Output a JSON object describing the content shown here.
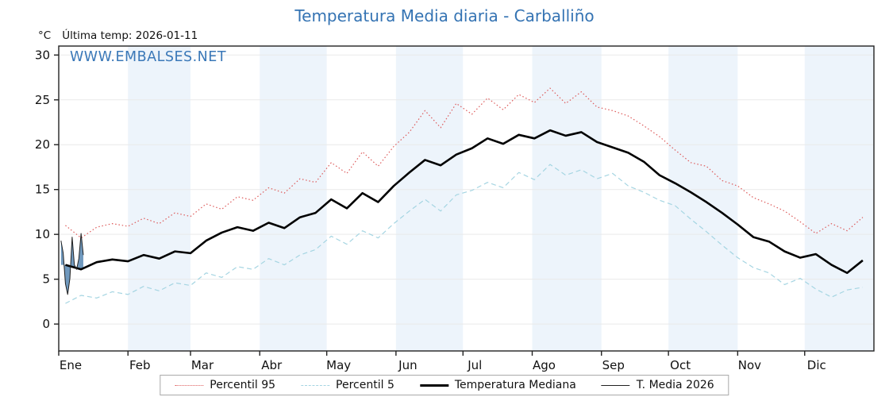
{
  "header": {
    "title": "Temperatura Media diaria - Carballiño",
    "unit_label": "°C",
    "last_temp_label": "Última temp: 2026-01-11",
    "watermark": "WWW.EMBALSES.NET"
  },
  "colors": {
    "title_blue": "#3473b3",
    "watermark_blue": "#3a78b8",
    "percentile95_red": "#dd5a5a",
    "percentile5_cyan": "#a5d5e2",
    "median_black": "#000000",
    "current_year_black": "#222222",
    "fill_blue": "#4c7fae",
    "band_blue": "#edf4fb"
  },
  "legend": {
    "items": [
      {
        "label": "Percentil 95",
        "style": "dotted",
        "color": "#dd5a5a",
        "thickness": 1
      },
      {
        "label": "Percentil 5",
        "style": "dashed",
        "color": "#a5d5e2",
        "thickness": 1
      },
      {
        "label": "Temperatura Mediana",
        "style": "solid",
        "color": "#000000",
        "thickness": 3
      },
      {
        "label": "T. Media 2026",
        "style": "solid",
        "color": "#222222",
        "thickness": 1
      }
    ]
  },
  "chart_data": {
    "type": "line",
    "title": "Temperatura Media diaria - Carballiño",
    "xlabel": "",
    "ylabel": "°C",
    "ylim": [
      -3,
      31
    ],
    "yticks": [
      0,
      5,
      10,
      15,
      20,
      25,
      30
    ],
    "x_months": [
      "Ene",
      "Feb",
      "Mar",
      "Abr",
      "May",
      "Jun",
      "Jul",
      "Ago",
      "Sep",
      "Oct",
      "Nov",
      "Dic"
    ],
    "month_start_days": [
      0,
      31,
      59,
      90,
      120,
      151,
      181,
      212,
      243,
      273,
      304,
      334
    ],
    "shaded_months": [
      1,
      3,
      5,
      7,
      9,
      11
    ],
    "band_color": "#edf4fb",
    "grid": true,
    "legend_position": "bottom",
    "series": [
      {
        "name": "Percentil 95",
        "style": "dotted",
        "color": "#dd5a5a",
        "width": 1.2,
        "days": [
          3,
          10,
          17,
          24,
          31,
          38,
          45,
          52,
          59,
          66,
          73,
          80,
          87,
          94,
          101,
          108,
          115,
          122,
          129,
          136,
          143,
          150,
          157,
          164,
          171,
          178,
          185,
          192,
          199,
          206,
          213,
          220,
          227,
          234,
          241,
          248,
          255,
          262,
          269,
          276,
          283,
          290,
          297,
          304,
          311,
          318,
          325,
          332,
          339,
          346,
          353,
          360
        ],
        "values": [
          11.0,
          9.6,
          10.8,
          11.2,
          10.9,
          11.8,
          11.2,
          12.4,
          12.0,
          13.4,
          12.8,
          14.2,
          13.8,
          15.2,
          14.6,
          16.2,
          15.8,
          18.0,
          16.8,
          19.2,
          17.6,
          19.8,
          21.4,
          23.8,
          21.9,
          24.6,
          23.4,
          25.2,
          23.9,
          25.6,
          24.7,
          26.3,
          24.6,
          25.9,
          24.2,
          23.8,
          23.2,
          22.1,
          20.9,
          19.4,
          18.0,
          17.6,
          16.0,
          15.4,
          14.1,
          13.4,
          12.6,
          11.4,
          10.1,
          11.2,
          10.4,
          11.9
        ]
      },
      {
        "name": "Percentil 5",
        "style": "dashed",
        "color": "#a5d5e2",
        "width": 1.2,
        "days": [
          3,
          10,
          17,
          24,
          31,
          38,
          45,
          52,
          59,
          66,
          73,
          80,
          87,
          94,
          101,
          108,
          115,
          122,
          129,
          136,
          143,
          150,
          157,
          164,
          171,
          178,
          185,
          192,
          199,
          206,
          213,
          220,
          227,
          234,
          241,
          248,
          255,
          262,
          269,
          276,
          283,
          290,
          297,
          304,
          311,
          318,
          325,
          332,
          339,
          346,
          353,
          360
        ],
        "values": [
          2.3,
          3.2,
          2.9,
          3.6,
          3.3,
          4.2,
          3.7,
          4.6,
          4.3,
          5.7,
          5.2,
          6.4,
          6.1,
          7.3,
          6.6,
          7.7,
          8.3,
          9.8,
          8.9,
          10.4,
          9.6,
          11.2,
          12.6,
          13.9,
          12.6,
          14.4,
          14.9,
          15.8,
          15.2,
          16.9,
          16.1,
          17.8,
          16.6,
          17.2,
          16.2,
          16.8,
          15.4,
          14.7,
          13.8,
          13.2,
          11.7,
          10.3,
          8.8,
          7.4,
          6.3,
          5.7,
          4.4,
          5.1,
          3.9,
          3.0,
          3.8,
          4.1
        ]
      },
      {
        "name": "Temperatura Mediana",
        "style": "solid",
        "color": "#000000",
        "width": 2.6,
        "days": [
          3,
          10,
          17,
          24,
          31,
          38,
          45,
          52,
          59,
          66,
          73,
          80,
          87,
          94,
          101,
          108,
          115,
          122,
          129,
          136,
          143,
          150,
          157,
          164,
          171,
          178,
          185,
          192,
          199,
          206,
          213,
          220,
          227,
          234,
          241,
          248,
          255,
          262,
          269,
          276,
          283,
          290,
          297,
          304,
          311,
          318,
          325,
          332,
          339,
          346,
          353,
          360
        ],
        "values": [
          6.6,
          6.1,
          6.9,
          7.2,
          7.0,
          7.7,
          7.3,
          8.1,
          7.9,
          9.3,
          10.2,
          10.8,
          10.4,
          11.3,
          10.7,
          11.9,
          12.4,
          13.9,
          12.9,
          14.6,
          13.6,
          15.4,
          16.9,
          18.3,
          17.7,
          18.9,
          19.6,
          20.7,
          20.1,
          21.1,
          20.7,
          21.6,
          21.0,
          21.4,
          20.3,
          19.7,
          19.1,
          18.1,
          16.6,
          15.7,
          14.7,
          13.6,
          12.4,
          11.1,
          9.7,
          9.2,
          8.1,
          7.4,
          7.8,
          6.6,
          5.7,
          7.1
        ]
      },
      {
        "name": "T. Media 2026",
        "style": "solid",
        "color": "#222222",
        "width": 1,
        "days": [
          1,
          2,
          3,
          4,
          5,
          6,
          7,
          8,
          9,
          10,
          11
        ],
        "values": [
          9.3,
          7.9,
          4.5,
          3.3,
          5.1,
          9.7,
          6.6,
          6.1,
          7.3,
          10.1,
          7.7
        ]
      }
    ],
    "fill_between": {
      "series_a": "T. Media 2026",
      "series_b": "Temperatura Mediana",
      "color": "#4c7fae",
      "opacity": 0.8
    }
  }
}
